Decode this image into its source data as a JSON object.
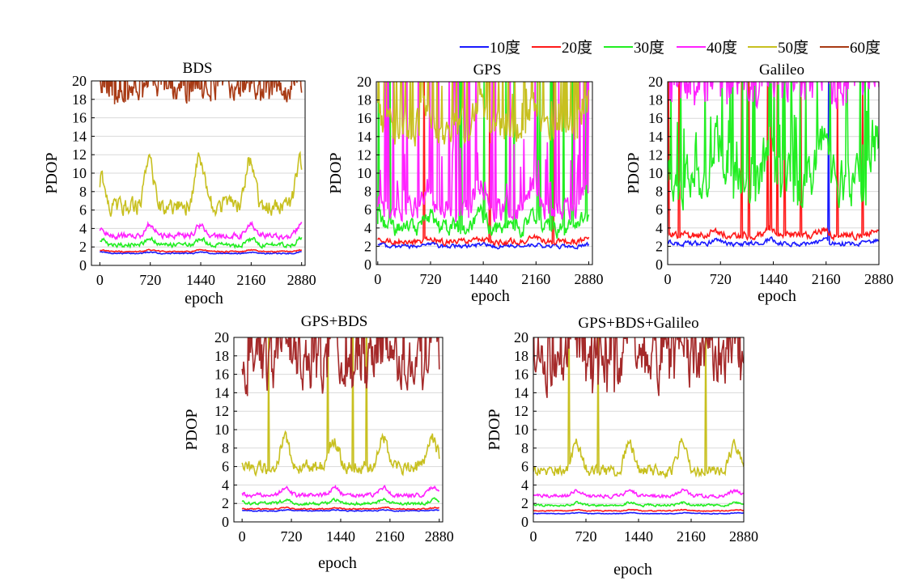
{
  "figure": {
    "legend": [
      {
        "name": "10度",
        "color": "#1a1aff"
      },
      {
        "name": "20度",
        "color": "#ff1a1a"
      },
      {
        "name": "30度",
        "color": "#22ee22"
      },
      {
        "name": "40度",
        "color": "#ff22ff"
      },
      {
        "name": "50度",
        "color": "#c8c020"
      },
      {
        "name": "60度",
        "color": "#a83a14"
      }
    ],
    "legend_placement": "top-right"
  },
  "chart_data": [
    {
      "type": "line",
      "title": "BDS",
      "xlabel": "epoch",
      "ylabel": "PDOP",
      "xticks": [
        0,
        720,
        1440,
        2160,
        2880
      ],
      "yticks": [
        0,
        2,
        4,
        6,
        8,
        10,
        12,
        14,
        16,
        18,
        20
      ],
      "xlim": [
        -120,
        2930
      ],
      "ylim": [
        0,
        20
      ],
      "grid": "horizontal",
      "series": [
        {
          "name": "10度",
          "color": "#1a1aff",
          "base": 1.3,
          "amp": 0.15,
          "noise": 0.1,
          "spikes": 0
        },
        {
          "name": "20度",
          "color": "#ff1a1a",
          "base": 1.5,
          "amp": 0.2,
          "noise": 0.1,
          "spikes": 0
        },
        {
          "name": "30度",
          "color": "#22ee22",
          "base": 2.2,
          "amp": 0.7,
          "noise": 0.4,
          "spikes": 0
        },
        {
          "name": "40度",
          "color": "#ff22ff",
          "base": 3.2,
          "amp": 1.2,
          "noise": 0.5,
          "spikes": 0
        },
        {
          "name": "50度",
          "color": "#c8c020",
          "base": 6.5,
          "amp": 5.0,
          "noise": 1.5,
          "spikes": 0.01
        },
        {
          "name": "60度",
          "color": "#a83a14",
          "base": 19.0,
          "amp": 1.0,
          "noise": 2.0,
          "spikes": 0.12
        }
      ]
    },
    {
      "type": "line",
      "title": "GPS",
      "xlabel": "epoch",
      "ylabel": "PDOP",
      "xticks": [
        0,
        720,
        1440,
        2160,
        2880
      ],
      "yticks": [
        0,
        2,
        4,
        6,
        8,
        10,
        12,
        14,
        16,
        18,
        20
      ],
      "xlim": [
        -20,
        2930
      ],
      "ylim": [
        0,
        20
      ],
      "grid": "horizontal",
      "series": [
        {
          "name": "10度",
          "color": "#1a1aff",
          "base": 2.0,
          "amp": 0.2,
          "noise": 0.35,
          "spikes": 0
        },
        {
          "name": "20度",
          "color": "#ff1a1a",
          "base": 2.5,
          "amp": 0.4,
          "noise": 0.5,
          "spikes": 0.01
        },
        {
          "name": "30度",
          "color": "#22ee22",
          "base": 4.0,
          "amp": 1.5,
          "noise": 1.5,
          "spikes": 0.05
        },
        {
          "name": "40度",
          "color": "#ff22ff",
          "base": 6.0,
          "amp": 2.5,
          "noise": 2.0,
          "spikes": 0.12
        },
        {
          "name": "50度",
          "color": "#c8c020",
          "base": 15.0,
          "amp": 3.0,
          "noise": 3.0,
          "spikes": 0.1
        }
      ]
    },
    {
      "type": "line",
      "title": "Galileo",
      "xlabel": "epoch",
      "ylabel": "PDOP",
      "xticks": [
        0,
        720,
        1440,
        2160,
        2880
      ],
      "yticks": [
        0,
        2,
        4,
        6,
        8,
        10,
        12,
        14,
        16,
        18,
        20
      ],
      "xlim": [
        0,
        2880
      ],
      "ylim": [
        0,
        20
      ],
      "grid": "horizontal",
      "series": [
        {
          "name": "10度",
          "color": "#1a1aff",
          "base": 2.3,
          "amp": 0.4,
          "noise": 0.4,
          "spikes": 0.01
        },
        {
          "name": "20度",
          "color": "#ff1a1a",
          "base": 3.2,
          "amp": 0.6,
          "noise": 0.6,
          "spikes": 0.03
        },
        {
          "name": "30度",
          "color": "#22ee22",
          "base": 9.0,
          "amp": 5.0,
          "noise": 4.0,
          "spikes": 0.15
        },
        {
          "name": "40度",
          "color": "#ff22ff",
          "base": 19.0,
          "amp": 2.0,
          "noise": 3.0,
          "spikes": 0.2
        }
      ]
    },
    {
      "type": "line",
      "title": "GPS+BDS",
      "xlabel": "epoch",
      "ylabel": "PDOP",
      "xticks": [
        0,
        720,
        1440,
        2160,
        2880
      ],
      "yticks": [
        0,
        2,
        4,
        6,
        8,
        10,
        12,
        14,
        16,
        18,
        20
      ],
      "xlim": [
        -120,
        2930
      ],
      "ylim": [
        0,
        20
      ],
      "grid": "horizontal",
      "series": [
        {
          "name": "10度",
          "color": "#1a1aff",
          "base": 1.2,
          "amp": 0.1,
          "noise": 0.08,
          "spikes": 0
        },
        {
          "name": "20度",
          "color": "#ff1a1a",
          "base": 1.4,
          "amp": 0.15,
          "noise": 0.1,
          "spikes": 0
        },
        {
          "name": "30度",
          "color": "#22ee22",
          "base": 2.0,
          "amp": 0.4,
          "noise": 0.25,
          "spikes": 0
        },
        {
          "name": "40度",
          "color": "#ff22ff",
          "base": 2.9,
          "amp": 0.8,
          "noise": 0.35,
          "spikes": 0
        },
        {
          "name": "50度",
          "color": "#c8c020",
          "base": 6.0,
          "amp": 3.0,
          "noise": 1.2,
          "spikes": 0.01
        },
        {
          "name": "60度",
          "color": "#a52a2a",
          "base": 17.0,
          "amp": 3.0,
          "noise": 4.5,
          "spikes": 0.1
        }
      ]
    },
    {
      "type": "line",
      "title": "GPS+BDS+Galileo",
      "xlabel": "epoch",
      "ylabel": "PDOP",
      "xticks": [
        0,
        720,
        1440,
        2160,
        2880
      ],
      "yticks": [
        0,
        2,
        4,
        6,
        8,
        10,
        12,
        14,
        16,
        18,
        20
      ],
      "xlim": [
        0,
        2880
      ],
      "ylim": [
        0,
        20
      ],
      "grid": "horizontal",
      "series": [
        {
          "name": "10度",
          "color": "#1a1aff",
          "base": 0.9,
          "amp": 0.1,
          "noise": 0.06,
          "spikes": 0
        },
        {
          "name": "20度",
          "color": "#ff1a1a",
          "base": 1.2,
          "amp": 0.12,
          "noise": 0.08,
          "spikes": 0
        },
        {
          "name": "30度",
          "color": "#22ee22",
          "base": 1.8,
          "amp": 0.3,
          "noise": 0.2,
          "spikes": 0
        },
        {
          "name": "40度",
          "color": "#ff22ff",
          "base": 2.8,
          "amp": 0.6,
          "noise": 0.3,
          "spikes": 0
        },
        {
          "name": "50度",
          "color": "#c8c020",
          "base": 5.5,
          "amp": 3.0,
          "noise": 1.0,
          "spikes": 0.01
        },
        {
          "name": "60度",
          "color": "#a52a2a",
          "base": 17.0,
          "amp": 3.0,
          "noise": 4.5,
          "spikes": 0.1
        }
      ]
    }
  ]
}
